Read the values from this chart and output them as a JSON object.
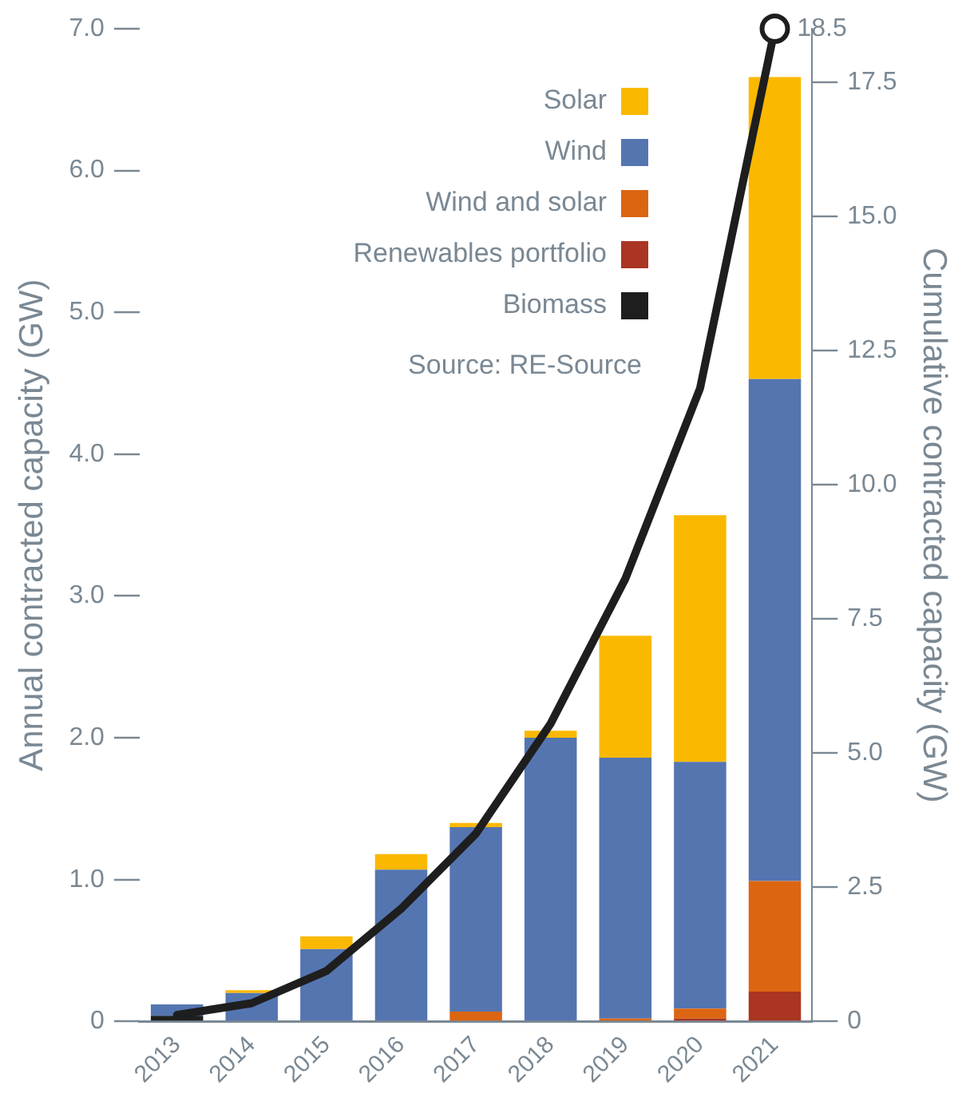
{
  "chart_data": {
    "type": "bar",
    "stacked": true,
    "categories": [
      "2013",
      "2014",
      "2015",
      "2016",
      "2017",
      "2018",
      "2019",
      "2020",
      "2021"
    ],
    "series": [
      {
        "name": "Biomass",
        "color": "#1e1e1e",
        "values": [
          0.04,
          0,
          0,
          0,
          0,
          0,
          0,
          0,
          0
        ]
      },
      {
        "name": "Renewables portfolio",
        "color": "#a93522",
        "values": [
          0,
          0,
          0,
          0,
          0,
          0,
          0,
          0.02,
          0.21
        ]
      },
      {
        "name": "Wind and solar",
        "color": "#dc6512",
        "values": [
          0,
          0,
          0,
          0,
          0.07,
          0,
          0.02,
          0.07,
          0.78
        ]
      },
      {
        "name": "Wind",
        "color": "#5575b1",
        "values": [
          0.08,
          0.2,
          0.51,
          1.07,
          1.3,
          2.0,
          1.84,
          1.74,
          3.54
        ]
      },
      {
        "name": "Solar",
        "color": "#fab800",
        "values": [
          0,
          0.02,
          0.09,
          0.11,
          0.03,
          0.05,
          0.86,
          1.74,
          2.13
        ]
      },
      {
        "type": "line",
        "axis": "y2",
        "color": "#1e1e1e",
        "values": [
          0.12,
          0.34,
          0.94,
          2.1,
          3.5,
          5.55,
          8.25,
          11.8,
          18.5
        ]
      }
    ],
    "ylabel": "Annual contracted capacity (GW)",
    "y2label": "Cumulative contracted capacity (GW)",
    "ylim": [
      0,
      7.0
    ],
    "yticks": [
      0,
      {
        "value": 1,
        "label": "1.0"
      },
      {
        "value": 2,
        "label": "2.0"
      },
      {
        "value": 3,
        "label": "3.0"
      },
      {
        "value": 4,
        "label": "4.0"
      },
      {
        "value": 5,
        "label": "5.0"
      },
      {
        "value": 6,
        "label": "6.0"
      },
      {
        "value": 7,
        "label": "7.0"
      }
    ],
    "y2lim": [
      0,
      18.5
    ],
    "y2ticks": [
      0,
      2.5,
      {
        "value": 5,
        "label": "5.0"
      },
      7.5,
      {
        "value": 10,
        "label": "10.0"
      },
      12.5,
      {
        "value": 15,
        "label": "15.0"
      },
      17.5
    ],
    "annotations": [
      "18.5",
      "Source: RE-Source"
    ],
    "legend": "top right",
    "grid": false,
    "line_style": "solid"
  }
}
